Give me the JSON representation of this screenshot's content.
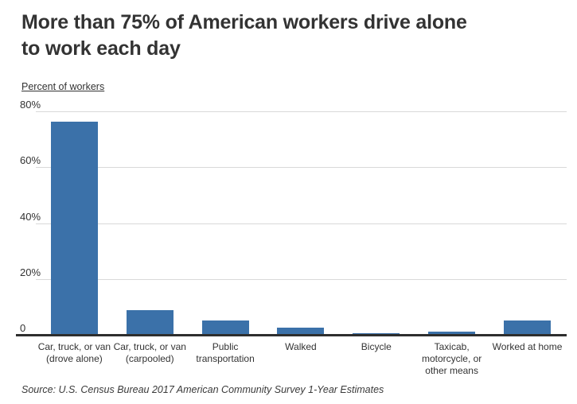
{
  "header": {
    "title": "More than 75% of American workers drive alone to work each day",
    "title_lines": [
      "More than 75% of American workers drive alone",
      "to work each day"
    ],
    "y_axis_title": "Percent of workers"
  },
  "footer": {
    "source": "Source: U.S. Census Bureau 2017 American Community Survey 1-Year Estimates"
  },
  "colors": {
    "bar": "#3b71a9",
    "gridline": "#d9d9d9",
    "axis_line": "#2e2e2e",
    "text": "#333333"
  },
  "chart_data": {
    "type": "bar",
    "title": "More than 75% of American workers drive alone to work each day",
    "xlabel": "",
    "ylabel": "Percent of workers",
    "categories": [
      "Car, truck, or van (drove alone)",
      "Car, truck, or van (carpooled)",
      "Public transportation",
      "Walked",
      "Bicycle",
      "Taxicab, motorcycle, or other means",
      "Worked at home"
    ],
    "values": [
      76.4,
      8.9,
      5.0,
      2.7,
      0.5,
      1.2,
      5.2
    ],
    "ylim": [
      0,
      80
    ],
    "yticks": [
      {
        "label": "80%",
        "value": 80
      },
      {
        "label": "60%",
        "value": 60
      },
      {
        "label": "40%",
        "value": 40
      },
      {
        "label": "20%",
        "value": 20
      },
      {
        "label": "0",
        "value": 0
      }
    ],
    "grid": true,
    "legend": false,
    "source": "Source: U.S. Census Bureau 2017 American Community Survey 1-Year Estimates"
  }
}
